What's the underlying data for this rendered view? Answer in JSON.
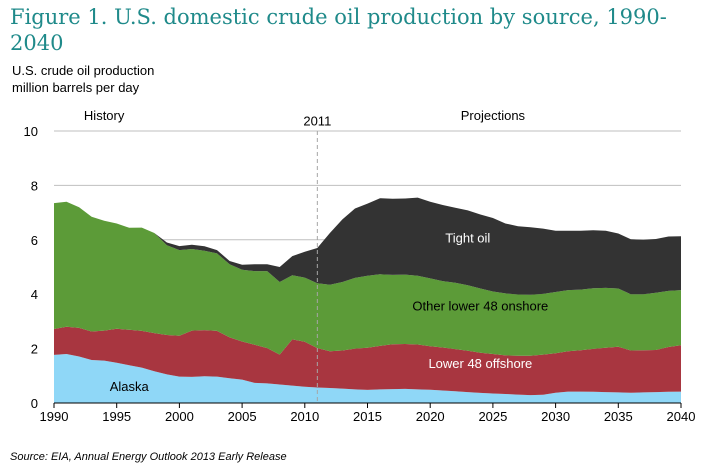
{
  "header": {
    "title": "Figure 1.  U.S. domestic crude oil production by source, 1990-2040",
    "ylabel_line1": "U.S. crude oil production",
    "ylabel_line2": "million barrels per day"
  },
  "footer": {
    "source": "Source:  EIA, Annual Energy Outlook 2013 Early Release"
  },
  "chart_data": {
    "type": "area",
    "stacked": true,
    "x": [
      1990,
      1991,
      1992,
      1993,
      1994,
      1995,
      1996,
      1997,
      1998,
      1999,
      2000,
      2001,
      2002,
      2003,
      2004,
      2005,
      2006,
      2007,
      2008,
      2009,
      2010,
      2011,
      2012,
      2013,
      2014,
      2015,
      2016,
      2017,
      2018,
      2019,
      2020,
      2021,
      2022,
      2023,
      2024,
      2025,
      2026,
      2027,
      2028,
      2029,
      2030,
      2031,
      2032,
      2033,
      2034,
      2035,
      2036,
      2037,
      2038,
      2039,
      2040
    ],
    "ylim": [
      0,
      10
    ],
    "yticks": [
      0,
      2,
      4,
      6,
      8,
      10
    ],
    "xticks": [
      1990,
      1995,
      2000,
      2005,
      2010,
      2015,
      2020,
      2025,
      2030,
      2035,
      2040
    ],
    "grid": "horizontal",
    "series": [
      {
        "name": "Alaska",
        "color": "#8fd7f7",
        "values": [
          1.77,
          1.8,
          1.71,
          1.58,
          1.56,
          1.48,
          1.39,
          1.3,
          1.17,
          1.05,
          0.97,
          0.96,
          0.98,
          0.97,
          0.91,
          0.86,
          0.74,
          0.72,
          0.68,
          0.64,
          0.6,
          0.57,
          0.55,
          0.53,
          0.5,
          0.48,
          0.5,
          0.51,
          0.52,
          0.5,
          0.49,
          0.46,
          0.43,
          0.4,
          0.37,
          0.35,
          0.33,
          0.31,
          0.29,
          0.3,
          0.38,
          0.42,
          0.42,
          0.41,
          0.4,
          0.39,
          0.38,
          0.39,
          0.4,
          0.41,
          0.42
        ]
      },
      {
        "name": "Lower 48 offshore",
        "color": "#a83640",
        "values": [
          0.95,
          1.0,
          1.05,
          1.05,
          1.1,
          1.25,
          1.3,
          1.35,
          1.4,
          1.45,
          1.5,
          1.7,
          1.7,
          1.68,
          1.5,
          1.4,
          1.4,
          1.3,
          1.1,
          1.7,
          1.65,
          1.45,
          1.35,
          1.4,
          1.5,
          1.55,
          1.6,
          1.65,
          1.65,
          1.65,
          1.6,
          1.58,
          1.55,
          1.52,
          1.48,
          1.45,
          1.42,
          1.43,
          1.45,
          1.48,
          1.45,
          1.48,
          1.52,
          1.58,
          1.63,
          1.68,
          1.55,
          1.55,
          1.55,
          1.65,
          1.7
        ]
      },
      {
        "name": "Other lower 48 onshore",
        "color": "#5c9b38",
        "values": [
          4.63,
          4.6,
          4.44,
          4.22,
          4.04,
          3.87,
          3.75,
          3.8,
          3.68,
          3.3,
          3.15,
          3.0,
          2.92,
          2.85,
          2.69,
          2.64,
          2.71,
          2.83,
          2.67,
          2.36,
          2.36,
          2.38,
          2.45,
          2.52,
          2.6,
          2.65,
          2.63,
          2.55,
          2.55,
          2.53,
          2.49,
          2.44,
          2.44,
          2.41,
          2.36,
          2.3,
          2.28,
          2.25,
          2.24,
          2.23,
          2.25,
          2.25,
          2.23,
          2.23,
          2.2,
          2.14,
          2.07,
          2.06,
          2.1,
          2.06,
          2.03
        ]
      },
      {
        "name": "Tight oil",
        "color": "#333333",
        "values": [
          0,
          0,
          0,
          0,
          0,
          0,
          0,
          0,
          0,
          0.1,
          0.15,
          0.16,
          0.16,
          0.12,
          0.12,
          0.18,
          0.25,
          0.25,
          0.55,
          0.7,
          0.95,
          1.3,
          1.9,
          2.3,
          2.55,
          2.65,
          2.8,
          2.8,
          2.8,
          2.87,
          2.82,
          2.8,
          2.76,
          2.75,
          2.72,
          2.7,
          2.57,
          2.51,
          2.48,
          2.4,
          2.25,
          2.18,
          2.16,
          2.13,
          2.1,
          2.02,
          2.02,
          2.0,
          1.98,
          2.0,
          1.98
        ]
      }
    ],
    "annotations": [
      {
        "text": "History",
        "x": 1994,
        "y": 10.4
      },
      {
        "text": "2011",
        "x": 2011,
        "y": 10.2,
        "vline": 2011
      },
      {
        "text": "Projections",
        "x": 2025,
        "y": 10.4
      },
      {
        "text": "Tight oil",
        "x": 2023,
        "y": 5.9
      },
      {
        "text": "Other lower 48 onshore",
        "x": 2024,
        "y": 3.4
      },
      {
        "text": "Lower 48 offshore",
        "x": 2024,
        "y": 1.28
      },
      {
        "text": "Alaska",
        "x": 1996,
        "y": 0.44
      }
    ]
  }
}
